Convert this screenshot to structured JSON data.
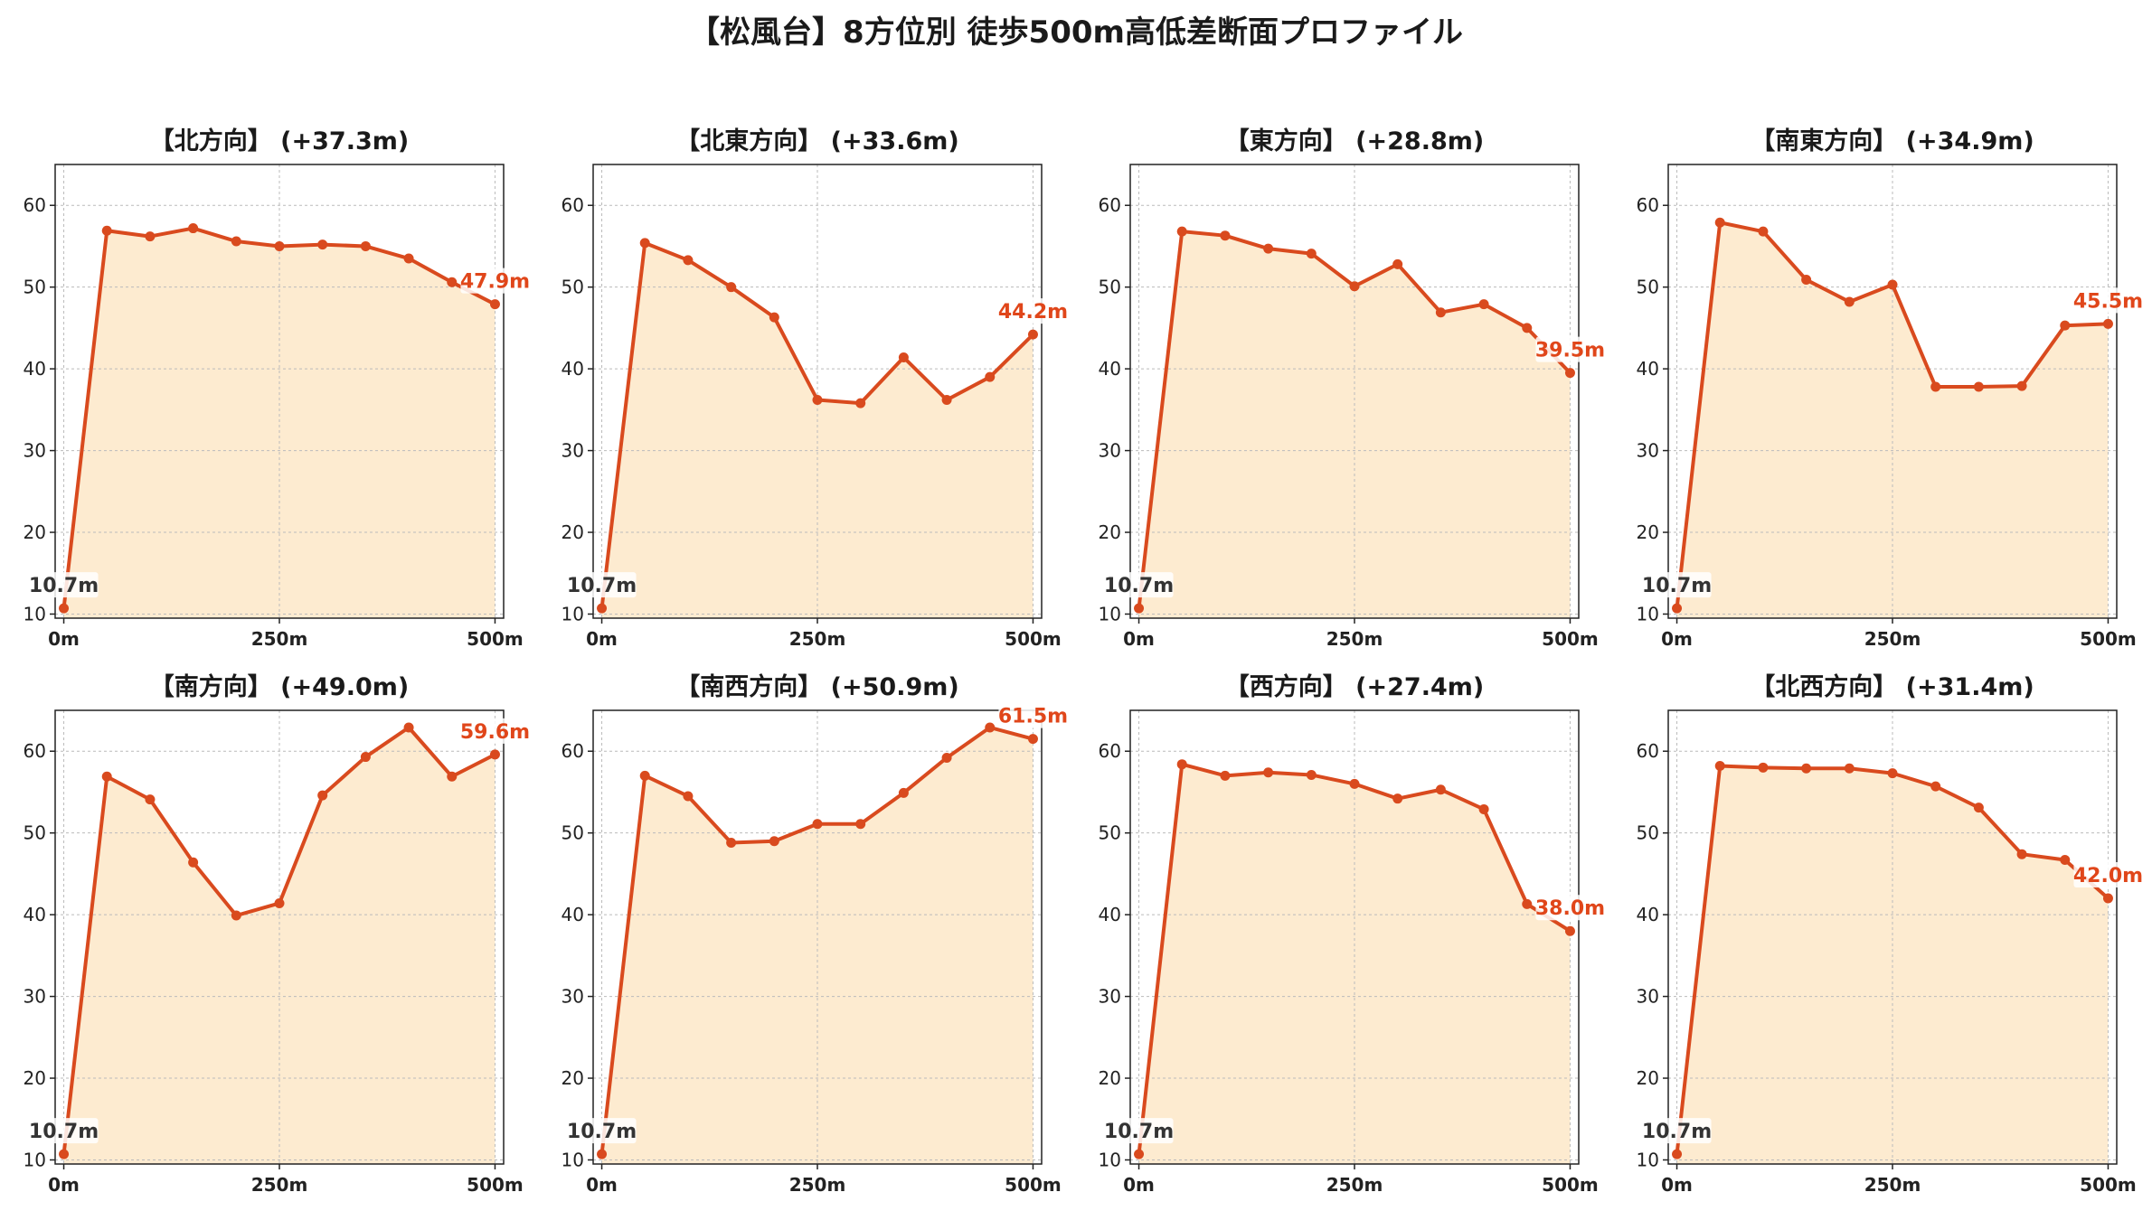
{
  "title": "【松風台】8方位別 徒歩500m高低差断面プロファイル",
  "colors": {
    "line": "#d94a1e",
    "fill": "#fdebd0",
    "label_end": "#e0461a",
    "grid": "#bbbbbb"
  },
  "chart_data": [
    {
      "type": "area",
      "title": "【北方向】 (+37.3m)",
      "x": [
        0,
        50,
        100,
        150,
        200,
        250,
        300,
        350,
        400,
        450,
        500
      ],
      "values": [
        10.7,
        56.9,
        56.2,
        57.2,
        55.6,
        55.0,
        55.2,
        55.0,
        53.5,
        50.6,
        47.9
      ],
      "start_label": "10.7m",
      "end_label": "47.9m",
      "xticks": [
        "0m",
        "250m",
        "500m"
      ],
      "yticks": [
        10,
        20,
        30,
        40,
        50,
        60
      ],
      "ylim": [
        9.5,
        65
      ],
      "xlim": [
        -10,
        510
      ],
      "grid": true
    },
    {
      "type": "area",
      "title": "【北東方向】 (+33.6m)",
      "x": [
        0,
        50,
        100,
        150,
        200,
        250,
        300,
        350,
        400,
        450,
        500
      ],
      "values": [
        10.7,
        55.4,
        53.3,
        50.0,
        46.3,
        36.2,
        35.8,
        41.4,
        36.2,
        39.0,
        44.2
      ],
      "start_label": "10.7m",
      "end_label": "44.2m",
      "xticks": [
        "0m",
        "250m",
        "500m"
      ],
      "yticks": [
        10,
        20,
        30,
        40,
        50,
        60
      ],
      "ylim": [
        9.5,
        65
      ],
      "xlim": [
        -10,
        510
      ],
      "grid": true
    },
    {
      "type": "area",
      "title": "【東方向】 (+28.8m)",
      "x": [
        0,
        50,
        100,
        150,
        200,
        250,
        300,
        350,
        400,
        450,
        500
      ],
      "values": [
        10.7,
        56.8,
        56.3,
        54.7,
        54.1,
        50.1,
        52.8,
        46.9,
        47.9,
        45.0,
        39.5
      ],
      "start_label": "10.7m",
      "end_label": "39.5m",
      "xticks": [
        "0m",
        "250m",
        "500m"
      ],
      "yticks": [
        10,
        20,
        30,
        40,
        50,
        60
      ],
      "ylim": [
        9.5,
        65
      ],
      "xlim": [
        -10,
        510
      ],
      "grid": true
    },
    {
      "type": "area",
      "title": "【南東方向】 (+34.9m)",
      "x": [
        0,
        50,
        100,
        150,
        200,
        250,
        300,
        350,
        400,
        450,
        500
      ],
      "values": [
        10.7,
        57.9,
        56.8,
        50.9,
        48.2,
        50.3,
        37.8,
        37.8,
        37.9,
        45.3,
        45.5
      ],
      "start_label": "10.7m",
      "end_label": "45.5m",
      "xticks": [
        "0m",
        "250m",
        "500m"
      ],
      "yticks": [
        10,
        20,
        30,
        40,
        50,
        60
      ],
      "ylim": [
        9.5,
        65
      ],
      "xlim": [
        -10,
        510
      ],
      "grid": true
    },
    {
      "type": "area",
      "title": "【南方向】 (+49.0m)",
      "x": [
        0,
        50,
        100,
        150,
        200,
        250,
        300,
        350,
        400,
        450,
        500
      ],
      "values": [
        10.7,
        56.9,
        54.1,
        46.4,
        39.9,
        41.4,
        54.6,
        59.3,
        62.9,
        56.9,
        59.6
      ],
      "start_label": "10.7m",
      "end_label": "59.6m",
      "xticks": [
        "0m",
        "250m",
        "500m"
      ],
      "yticks": [
        10,
        20,
        30,
        40,
        50,
        60
      ],
      "ylim": [
        9.5,
        65
      ],
      "xlim": [
        -10,
        510
      ],
      "grid": true
    },
    {
      "type": "area",
      "title": "【南西方向】 (+50.9m)",
      "x": [
        0,
        50,
        100,
        150,
        200,
        250,
        300,
        350,
        400,
        450,
        500
      ],
      "values": [
        10.7,
        57.0,
        54.5,
        48.8,
        49.0,
        51.1,
        51.1,
        54.9,
        59.2,
        62.9,
        61.5
      ],
      "start_label": "10.7m",
      "end_label": "61.5m",
      "xticks": [
        "0m",
        "250m",
        "500m"
      ],
      "yticks": [
        10,
        20,
        30,
        40,
        50,
        60
      ],
      "ylim": [
        9.5,
        65
      ],
      "xlim": [
        -10,
        510
      ],
      "grid": true
    },
    {
      "type": "area",
      "title": "【西方向】 (+27.4m)",
      "x": [
        0,
        50,
        100,
        150,
        200,
        250,
        300,
        350,
        400,
        450,
        500
      ],
      "values": [
        10.7,
        58.4,
        57.0,
        57.4,
        57.1,
        56.0,
        54.2,
        55.3,
        52.9,
        41.3,
        38.0
      ],
      "start_label": "10.7m",
      "end_label": "38.0m",
      "xticks": [
        "0m",
        "250m",
        "500m"
      ],
      "yticks": [
        10,
        20,
        30,
        40,
        50,
        60
      ],
      "ylim": [
        9.5,
        65
      ],
      "xlim": [
        -10,
        510
      ],
      "grid": true
    },
    {
      "type": "area",
      "title": "【北西方向】 (+31.4m)",
      "x": [
        0,
        50,
        100,
        150,
        200,
        250,
        300,
        350,
        400,
        450,
        500
      ],
      "values": [
        10.7,
        58.2,
        58.0,
        57.9,
        57.9,
        57.3,
        55.7,
        53.1,
        47.4,
        46.7,
        42.0
      ],
      "start_label": "10.7m",
      "end_label": "42.0m",
      "xticks": [
        "0m",
        "250m",
        "500m"
      ],
      "yticks": [
        10,
        20,
        30,
        40,
        50,
        60
      ],
      "ylim": [
        9.5,
        65
      ],
      "xlim": [
        -10,
        510
      ],
      "grid": true
    }
  ]
}
